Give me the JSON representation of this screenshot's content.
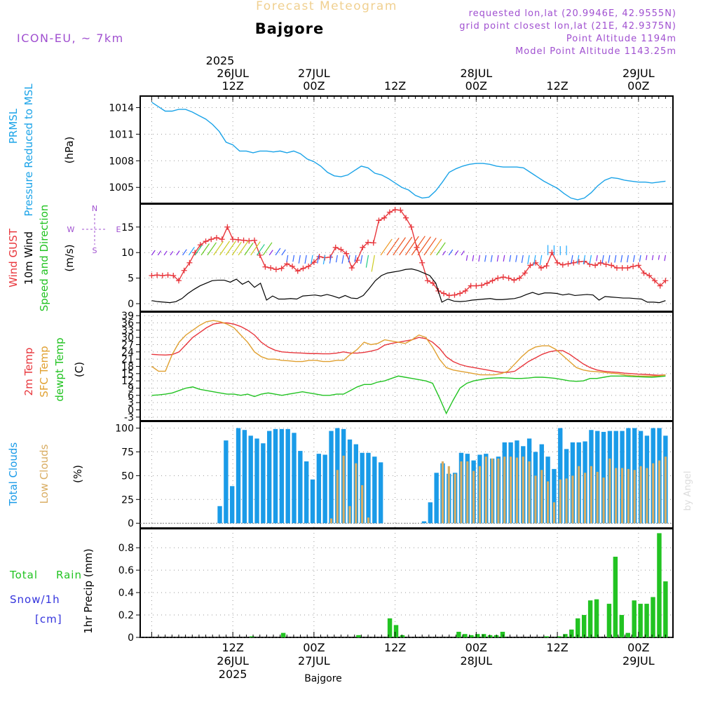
{
  "header": {
    "title": "Forecast Meteogram",
    "location": "Bajgore",
    "model": "ICON-EU, ~ 7km",
    "requested": "requested lon,lat (20.9946E, 42.9555N)",
    "grid_point": "grid point closest lon,lat (21E, 42.9375N)",
    "point_altitude": "Point Altitude 1194m",
    "model_altitude": "Model Point Altitude 1143.25m",
    "footer_location": "Bajgore",
    "watermark": "by Angel"
  },
  "time_axis": {
    "top_year": "2025",
    "labels": [
      {
        "t": 12,
        "top": "26JUL",
        "bottom": "12Z"
      },
      {
        "t": 24,
        "top": "27JUL",
        "bottom": "00Z"
      },
      {
        "t": 36,
        "top": "",
        "bottom": "12Z"
      },
      {
        "t": 48,
        "top": "28JUL",
        "bottom": "00Z"
      },
      {
        "t": 60,
        "top": "",
        "bottom": "12Z"
      },
      {
        "t": 72,
        "top": "29JUL",
        "bottom": "00Z"
      }
    ],
    "bottom_labels": [
      {
        "t": 12,
        "time": "12Z",
        "date": "26JUL",
        "year": "2025"
      },
      {
        "t": 24,
        "time": "00Z",
        "date": "27JUL",
        "year": ""
      },
      {
        "t": 36,
        "time": "12Z",
        "date": "",
        "year": ""
      },
      {
        "t": 48,
        "time": "00Z",
        "date": "28JUL",
        "year": ""
      },
      {
        "t": 60,
        "time": "12Z",
        "date": "",
        "year": ""
      },
      {
        "t": 72,
        "time": "00Z",
        "date": "29JUL",
        "year": ""
      }
    ]
  },
  "colors": {
    "pressure": "#1aa3e8",
    "gust": "#e8363c",
    "wind10m": "#000000",
    "temp2m": "#e8363c",
    "sfc_temp": "#e0a030",
    "dewpoint": "#22c322",
    "total_clouds": "#1a9be8",
    "low_clouds": "#d9ad63",
    "rain": "#22c322",
    "snow": "#3333dd",
    "header_purple": "#a050d0",
    "header_gold": "#f0d090"
  },
  "panels": {
    "pressure": {
      "ylabels": [
        "PRMSL",
        "Pressure Reduced to MSL",
        "(hPa)"
      ],
      "yticks": [
        "1014",
        "1011",
        "1008",
        "1005"
      ]
    },
    "wind": {
      "ylabels": [
        "Wind GUST",
        "10m Wind",
        "Speed and Direction",
        "(m/s)"
      ],
      "yticks": [
        "15",
        "10",
        "5",
        "0"
      ],
      "compass": {
        "n": "N",
        "s": "S",
        "e": "E",
        "w": "W"
      }
    },
    "temp": {
      "ylabels": [
        "2m Temp",
        "SFC Temp",
        "dewpt Temp",
        "(C)"
      ],
      "yticks": [
        "39",
        "36",
        "33",
        "30",
        "27",
        "24",
        "21",
        "18",
        "15",
        "12",
        "9",
        "6",
        "3",
        "0",
        "-3"
      ]
    },
    "clouds": {
      "ylabels": [
        "Total Clouds",
        "Low Clouds",
        "(%)"
      ],
      "yticks": [
        "100",
        "75",
        "50",
        "25",
        "0"
      ]
    },
    "precip": {
      "ylabels": [
        "Total",
        "Rain",
        "Snow/1h",
        "[cm]",
        "1hr Precip (mm)"
      ],
      "yticks": [
        "0.8",
        "0.6",
        "0.4",
        "0.2",
        "0"
      ]
    }
  },
  "chart_data": [
    {
      "type": "line",
      "name": "pressure",
      "x_unit": "hours from 26JUL 00Z",
      "ylim": [
        1003.2,
        1015.3
      ],
      "series": [
        {
          "name": "PRMSL",
          "x": [
            0,
            1,
            2,
            3,
            4,
            5,
            6,
            7,
            8,
            9,
            10,
            11,
            12,
            13,
            14,
            15,
            16,
            17,
            18,
            19,
            20,
            21,
            22,
            23,
            24,
            25,
            26,
            27,
            28,
            29,
            30,
            31,
            32,
            33,
            34,
            35,
            36,
            37,
            38,
            39,
            40,
            41,
            42,
            43,
            44,
            45,
            46,
            47,
            48,
            49,
            50,
            51,
            52,
            53,
            54,
            55,
            56,
            57,
            58,
            59,
            60,
            61,
            62,
            63,
            64,
            65,
            66,
            67,
            68,
            69,
            70,
            71,
            72,
            73,
            74,
            75,
            76
          ],
          "values": [
            1014.6,
            1014.1,
            1013.6,
            1013.6,
            1013.8,
            1013.8,
            1013.5,
            1013.1,
            1012.7,
            1012.1,
            1011.3,
            1010.1,
            1009.8,
            1009.1,
            1009.1,
            1008.9,
            1009.1,
            1009.1,
            1009.0,
            1009.1,
            1008.9,
            1009.1,
            1008.8,
            1008.2,
            1007.9,
            1007.4,
            1006.7,
            1006.3,
            1006.2,
            1006.4,
            1006.9,
            1007.4,
            1007.2,
            1006.6,
            1006.4,
            1006.0,
            1005.5,
            1005.0,
            1004.7,
            1004.1,
            1003.8,
            1003.9,
            1004.6,
            1005.6,
            1006.7,
            1007.1,
            1007.4,
            1007.6,
            1007.7,
            1007.7,
            1007.6,
            1007.4,
            1007.3,
            1007.3,
            1007.3,
            1007.2,
            1006.7,
            1006.2,
            1005.7,
            1005.3,
            1004.9,
            1004.3,
            1003.8,
            1003.6,
            1003.8,
            1004.4,
            1005.2,
            1005.8,
            1006.1,
            1006.0,
            1005.8,
            1005.7,
            1005.6,
            1005.6,
            1005.5,
            1005.6,
            1005.7
          ]
        }
      ]
    },
    {
      "type": "line",
      "name": "wind",
      "x_unit": "hours from 26JUL 00Z",
      "ylim": [
        -1.5,
        19.5
      ],
      "series": [
        {
          "name": "Wind GUST",
          "values": [
            5.5,
            5.6,
            5.5,
            5.6,
            5.5,
            4.5,
            6.5,
            8.0,
            10.0,
            11.5,
            12.2,
            12.6,
            12.9,
            12.6,
            15.0,
            12.6,
            12.5,
            12.4,
            12.3,
            12.4,
            9.5,
            7.2,
            7.0,
            6.7,
            6.9,
            7.8,
            7.3,
            6.4,
            6.9,
            7.3,
            8.1,
            9.2,
            9.0,
            9.1,
            11.0,
            10.6,
            9.8,
            7.0,
            8.5,
            11.0,
            12.0,
            11.9,
            16.3,
            16.8,
            17.9,
            18.4,
            18.3,
            16.8,
            15.0,
            11.0,
            8.0,
            4.5,
            4.0,
            2.5,
            2.0,
            1.6,
            1.7,
            2.0,
            2.5,
            3.5,
            3.5,
            3.6,
            4.0,
            4.5,
            5.0,
            5.2,
            5.0,
            4.6,
            5.0,
            6.0,
            7.5,
            8.0,
            7.0,
            7.4,
            10.0,
            8.0,
            7.6,
            7.8,
            8.0,
            8.2,
            8.3,
            7.7,
            7.5,
            8.0,
            7.7,
            7.5,
            7.0,
            7.0,
            7.0,
            7.3,
            7.5,
            6.0,
            5.5,
            4.5,
            3.5,
            4.5
          ]
        },
        {
          "name": "10m Wind",
          "values": [
            0.6,
            0.4,
            0.3,
            0.2,
            0.4,
            1.0,
            2.0,
            2.8,
            3.5,
            4.0,
            4.5,
            4.6,
            4.6,
            4.2,
            4.8,
            3.8,
            4.4,
            3.2,
            4.0,
            0.7,
            1.5,
            0.9,
            0.9,
            1.0,
            0.9,
            1.5,
            1.6,
            1.7,
            1.5,
            1.8,
            1.5,
            1.1,
            1.6,
            1.1,
            1.0,
            1.6,
            3.0,
            4.5,
            5.5,
            6.0,
            6.2,
            6.4,
            6.7,
            6.8,
            6.5,
            6.0,
            5.5,
            4.0,
            0.3,
            0.9,
            0.5,
            0.4,
            0.5,
            0.7,
            0.8,
            0.9,
            1.0,
            0.8,
            0.8,
            0.9,
            1.0,
            1.3,
            1.8,
            2.2,
            1.8,
            2.1,
            2.1,
            2.0,
            1.7,
            1.9,
            1.6,
            1.7,
            1.8,
            1.7,
            0.7,
            1.4,
            1.3,
            1.2,
            1.1,
            1.1,
            1.0,
            0.9,
            0.3,
            0.3,
            0.2,
            0.6
          ]
        }
      ]
    },
    {
      "type": "line",
      "name": "temperature",
      "x_unit": "hours from 26JUL 00Z",
      "ylim": [
        -4.5,
        40.5
      ],
      "series": [
        {
          "name": "2m Temp",
          "values": [
            23.0,
            22.8,
            22.7,
            22.9,
            24.0,
            27.0,
            30.0,
            32.0,
            34.0,
            35.5,
            36.0,
            36.0,
            35.5,
            34.5,
            33.0,
            31.0,
            28.0,
            26.0,
            24.7,
            24.0,
            23.8,
            23.6,
            23.5,
            23.3,
            23.3,
            23.2,
            23.2,
            23.5,
            24.0,
            23.5,
            23.5,
            23.8,
            24.3,
            25.0,
            26.8,
            27.5,
            28.0,
            28.5,
            29.0,
            30.0,
            29.5,
            28.0,
            25.5,
            22.0,
            20.0,
            18.8,
            18.0,
            17.5,
            17.0,
            16.5,
            16.0,
            15.5,
            15.5,
            16.0,
            18.0,
            20.0,
            21.5,
            23.0,
            24.0,
            24.5,
            24.5,
            23.0,
            21.0,
            19.0,
            17.5,
            16.5,
            16.0,
            15.7,
            15.5,
            15.2,
            15.0,
            14.8,
            14.7,
            14.5,
            14.3,
            14.5
          ]
        },
        {
          "name": "SFC Temp",
          "values": [
            18.0,
            16.0,
            16.0,
            23.0,
            28.0,
            31.0,
            33.0,
            35.0,
            36.5,
            37.0,
            36.5,
            35.5,
            34.0,
            31.0,
            28.0,
            24.0,
            22.0,
            21.0,
            21.0,
            20.5,
            20.3,
            20.0,
            20.0,
            20.5,
            20.5,
            20.0,
            20.0,
            20.5,
            20.5,
            23.0,
            25.0,
            28.0,
            27.0,
            27.5,
            29.0,
            28.5,
            28.0,
            27.5,
            29.0,
            31.0,
            30.0,
            26.0,
            21.0,
            17.5,
            16.5,
            16.0,
            15.5,
            15.0,
            14.5,
            14.5,
            14.5,
            15.0,
            16.0,
            19.0,
            22.0,
            24.5,
            26.0,
            26.5,
            26.5,
            25.0,
            22.5,
            20.0,
            17.5,
            16.5,
            16.0,
            15.8,
            15.5,
            15.2,
            15.0,
            14.5,
            14.2,
            14.0,
            14.0,
            14.0,
            14.0,
            14.5
          ]
        },
        {
          "name": "dewpt Temp",
          "values": [
            6.0,
            6.2,
            6.5,
            7.0,
            8.0,
            9.0,
            9.5,
            8.5,
            8.0,
            7.5,
            7.0,
            6.5,
            6.5,
            6.0,
            6.5,
            5.5,
            6.5,
            7.0,
            6.5,
            6.0,
            6.5,
            7.0,
            7.5,
            7.0,
            6.5,
            6.0,
            6.0,
            6.5,
            6.5,
            8.0,
            9.5,
            10.5,
            10.5,
            11.5,
            12.0,
            13.0,
            14.0,
            13.5,
            13.0,
            12.5,
            12.0,
            11.0,
            5.0,
            -1.5,
            4.0,
            9.0,
            11.0,
            12.0,
            12.5,
            13.0,
            13.2,
            13.3,
            13.2,
            13.0,
            13.0,
            13.2,
            13.5,
            13.5,
            13.3,
            13.0,
            12.5,
            12.0,
            11.8,
            12.0,
            13.0,
            13.0,
            13.5,
            14.0,
            14.0,
            14.0,
            13.8,
            13.7,
            13.6,
            13.5,
            13.7,
            14.0
          ]
        }
      ]
    },
    {
      "type": "bar",
      "name": "clouds",
      "x_unit": "hours from 26JUL 00Z",
      "ylim": [
        -5,
        107
      ],
      "series": [
        {
          "name": "Total Clouds",
          "values": [
            0,
            0,
            0,
            0,
            0,
            0,
            0,
            0,
            0,
            0,
            0,
            18,
            87,
            39,
            100,
            98,
            92,
            89,
            84,
            97,
            99,
            99,
            99,
            95,
            76,
            65,
            46,
            73,
            72,
            97,
            100,
            99,
            88,
            83,
            74,
            74,
            70,
            64,
            0,
            0,
            0,
            0,
            0,
            0,
            2,
            22,
            53,
            63,
            52,
            53,
            74,
            73,
            66,
            72,
            73,
            68,
            70,
            85,
            85,
            87,
            81,
            89,
            75,
            83,
            70,
            57,
            100,
            78,
            85,
            85,
            86,
            98,
            97,
            96,
            97,
            97,
            97,
            100,
            100,
            97,
            92,
            100,
            100,
            92
          ]
        },
        {
          "name": "Low Clouds",
          "values": [
            0,
            0,
            0,
            0,
            0,
            0,
            0,
            0,
            0,
            0,
            0,
            0,
            0,
            0,
            0,
            0,
            0,
            0,
            0,
            0,
            0,
            0,
            0,
            0,
            0,
            0,
            0,
            0,
            0,
            5,
            56,
            71,
            18,
            63,
            40,
            6,
            0,
            0,
            0,
            0,
            0,
            0,
            0,
            0,
            0,
            0,
            0,
            65,
            60,
            52,
            65,
            65,
            55,
            60,
            70,
            68,
            68,
            70,
            70,
            69,
            70,
            65,
            50,
            56,
            44,
            22,
            46,
            47,
            50,
            60,
            53,
            60,
            54,
            48,
            68,
            58,
            58,
            57,
            56,
            60,
            58,
            63,
            66,
            70
          ]
        }
      ]
    },
    {
      "type": "bar",
      "name": "precipitation",
      "x_unit": "hours from 26JUL 00Z",
      "ylim": [
        0,
        0.97
      ],
      "series": [
        {
          "name": "Total Rain",
          "values": [
            0,
            0,
            0,
            0,
            0,
            0,
            0,
            0,
            0,
            0,
            0,
            0,
            0,
            0,
            0,
            0,
            0.01,
            0,
            0,
            0,
            0,
            0.04,
            0,
            0,
            0,
            0,
            0,
            0,
            0,
            0,
            0,
            0,
            0,
            0.02,
            0,
            0,
            0,
            0,
            0.17,
            0.11,
            0.02,
            0,
            0,
            0,
            0,
            0,
            0,
            0,
            0,
            0.05,
            0.03,
            0.02,
            0.03,
            0.03,
            0.02,
            0.02,
            0.05,
            0,
            0,
            0,
            0,
            0,
            0,
            0.01,
            0,
            0.01,
            0.03,
            0.07,
            0.17,
            0.2,
            0.33,
            0.34,
            0,
            0.3,
            0.72,
            0.2,
            0.04,
            0.33,
            0.3,
            0.3,
            0.36,
            0.93,
            0.5
          ]
        },
        {
          "name": "Snow/1h",
          "values": []
        }
      ]
    }
  ]
}
